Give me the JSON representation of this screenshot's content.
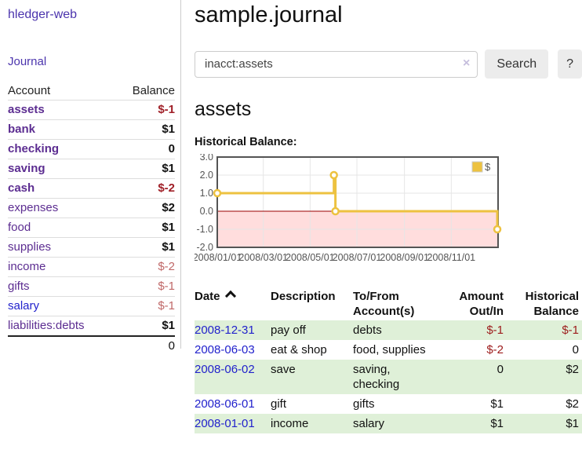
{
  "app": {
    "brand": "hledger-web",
    "nav_journal": "Journal"
  },
  "sidebar": {
    "col_account": "Account",
    "col_balance": "Balance",
    "accounts": [
      {
        "name": "assets",
        "level": 1,
        "bold": true,
        "balance": "$-1",
        "negative": true
      },
      {
        "name": "bank",
        "level": 2,
        "bold": true,
        "balance": "$1",
        "negative": false
      },
      {
        "name": "checking",
        "level": 3,
        "bold": true,
        "balance": "0",
        "negative": false
      },
      {
        "name": "saving",
        "level": 3,
        "bold": true,
        "balance": "$1",
        "negative": false
      },
      {
        "name": "cash",
        "level": 2,
        "bold": true,
        "balance": "$-2",
        "negative": true
      },
      {
        "name": "expenses",
        "level": 1,
        "bold": false,
        "balance": "$2",
        "negative": false
      },
      {
        "name": "food",
        "level": 2,
        "bold": false,
        "balance": "$1",
        "negative": false
      },
      {
        "name": "supplies",
        "level": 2,
        "bold": false,
        "balance": "$1",
        "negative": false
      },
      {
        "name": "income",
        "level": 1,
        "bold": false,
        "balance": "$-2",
        "negative": true
      },
      {
        "name": "gifts",
        "level": 2,
        "bold": false,
        "balance": "$-1",
        "negative": true
      },
      {
        "name": "salary",
        "level": 2,
        "bold": false,
        "balance": "$-1",
        "negative": true,
        "blue": true
      },
      {
        "name": "liabilities:debts",
        "level": 1,
        "bold": false,
        "balance": "$1",
        "negative": false
      }
    ],
    "total": "0"
  },
  "header": {
    "title": "sample.journal"
  },
  "search": {
    "value": "inacct:assets",
    "clear_icon": "×",
    "button_label": "Search",
    "help_label": "?"
  },
  "account_page": {
    "title": "assets",
    "chart_label": "Historical Balance:"
  },
  "chart_data": {
    "type": "line",
    "step": true,
    "title": "Historical Balance:",
    "legend": {
      "label": "$",
      "position": "top-right"
    },
    "series": [
      {
        "name": "$",
        "color": "#edc240",
        "points": [
          {
            "date": "2008-01-01",
            "value": 1
          },
          {
            "date": "2008-06-01",
            "value": 2
          },
          {
            "date": "2008-06-03",
            "value": 0
          },
          {
            "date": "2008-12-31",
            "value": -1
          }
        ]
      }
    ],
    "xlim": [
      "2008-01-01",
      "2009-01-01"
    ],
    "ylim": [
      -2,
      3
    ],
    "y_ticks": [
      "3.0",
      "2.0",
      "1.0",
      "0.0",
      "-1.0",
      "-2.0"
    ],
    "x_ticks": [
      {
        "date": "2008-01-01",
        "label": "2008/01/01"
      },
      {
        "date": "2008-03-01",
        "label": "2008/03/01"
      },
      {
        "date": "2008-05-01",
        "label": "2008/05/01"
      },
      {
        "date": "2008-07-01",
        "label": "2008/07/01"
      },
      {
        "date": "2008-09-01",
        "label": "2008/09/01"
      },
      {
        "date": "2008-11-01",
        "label": "2008/11/01"
      }
    ],
    "grid": true,
    "negative_region_color": "#ffdddd",
    "zero_line_color": "#990000",
    "grid_color": "#e6e6e6",
    "border_color": "#545454",
    "tick_color": "#545454"
  },
  "register": {
    "columns": [
      "Date",
      "Description",
      "To/From Account(s)",
      "Amount Out/In",
      "Historical Balance"
    ],
    "rows": [
      {
        "date": "2008-12-31",
        "description": "pay off",
        "accounts": "debts",
        "amount": "$-1",
        "amount_negative": true,
        "balance": "$-1",
        "balance_negative": true
      },
      {
        "date": "2008-06-03",
        "description": "eat & shop",
        "accounts": "food, supplies",
        "amount": "$-2",
        "amount_negative": true,
        "balance": "0",
        "balance_negative": false
      },
      {
        "date": "2008-06-02",
        "description": "save",
        "accounts": "saving, checking",
        "amount": "0",
        "amount_negative": false,
        "balance": "$2",
        "balance_negative": false
      },
      {
        "date": "2008-06-01",
        "description": "gift",
        "accounts": "gifts",
        "amount": "$1",
        "amount_negative": false,
        "balance": "$2",
        "balance_negative": false
      },
      {
        "date": "2008-01-01",
        "description": "income",
        "accounts": "salary",
        "amount": "$1",
        "amount_negative": false,
        "balance": "$1",
        "balance_negative": false
      }
    ]
  },
  "colors": {
    "link_purple": "#5c2d91",
    "nav_purple": "#4b34ad",
    "link_blue": "#2222cc",
    "negative_strong": "#a02028",
    "negative_soft": "#c06868",
    "negative_table": "#9d1c1c",
    "row_stripe_green": "#dff0d8",
    "chart_yellow": "#edc240",
    "chart_negative_region": "#ffdddd",
    "chart_zero_line": "#990000",
    "button_bg": "#ececec"
  }
}
